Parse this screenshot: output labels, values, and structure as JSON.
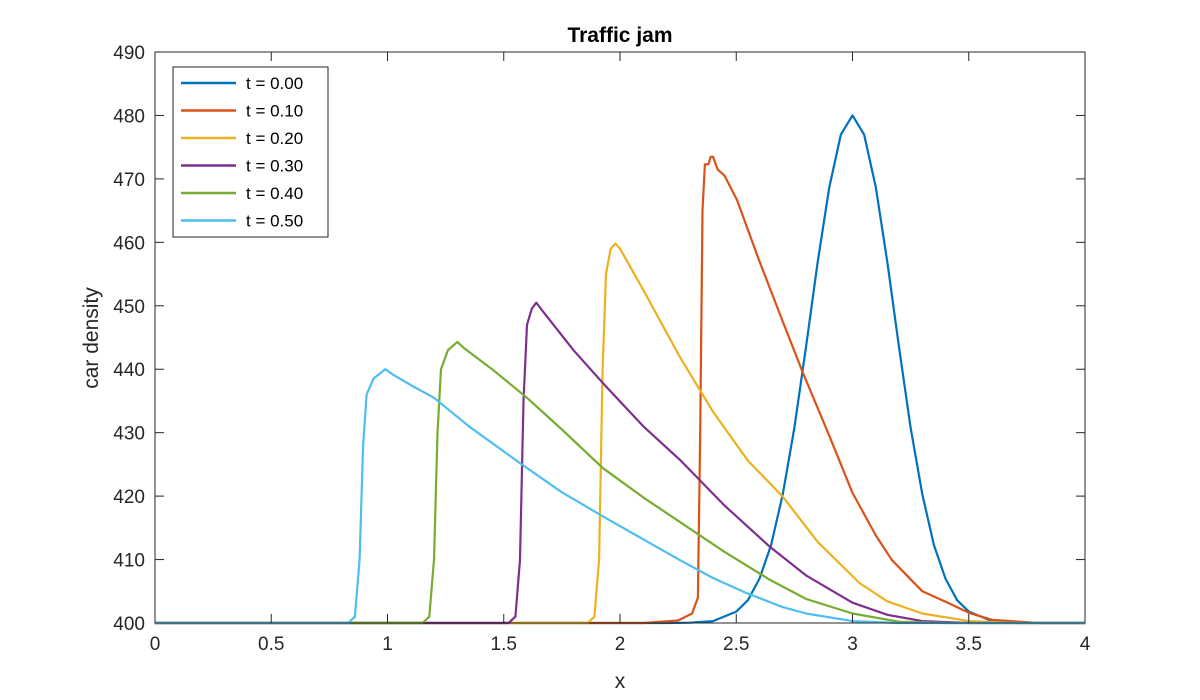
{
  "chart_data": {
    "type": "line",
    "title": "Traffic jam",
    "xlabel": "x",
    "ylabel": "car density",
    "xlim": [
      0,
      4
    ],
    "ylim": [
      400,
      490
    ],
    "xticks": [
      0,
      0.5,
      1,
      1.5,
      2,
      2.5,
      3,
      3.5,
      4
    ],
    "xtick_labels": [
      "0",
      "0.5",
      "1",
      "1.5",
      "2",
      "2.5",
      "3",
      "3.5",
      "4"
    ],
    "yticks": [
      400,
      410,
      420,
      430,
      440,
      450,
      460,
      470,
      480,
      490
    ],
    "ytick_labels": [
      "400",
      "410",
      "420",
      "430",
      "440",
      "450",
      "460",
      "470",
      "480",
      "490"
    ],
    "grid": false,
    "legend_position": "top-left",
    "series": [
      {
        "name": "t = 0.00",
        "color": "#0072BD",
        "points": [
          [
            0,
            400
          ],
          [
            2.2,
            400
          ],
          [
            2.3,
            400.05
          ],
          [
            2.4,
            400.3
          ],
          [
            2.5,
            401.8
          ],
          [
            2.55,
            403.6
          ],
          [
            2.6,
            407.0
          ],
          [
            2.65,
            412.3
          ],
          [
            2.7,
            420.3
          ],
          [
            2.75,
            430.8
          ],
          [
            2.8,
            443.5
          ],
          [
            2.85,
            456.8
          ],
          [
            2.9,
            468.7
          ],
          [
            2.95,
            477.0
          ],
          [
            3.0,
            480
          ],
          [
            3.05,
            477.0
          ],
          [
            3.1,
            468.7
          ],
          [
            3.15,
            456.8
          ],
          [
            3.2,
            443.5
          ],
          [
            3.25,
            430.8
          ],
          [
            3.3,
            420.3
          ],
          [
            3.35,
            412.3
          ],
          [
            3.4,
            407.0
          ],
          [
            3.45,
            403.6
          ],
          [
            3.5,
            401.8
          ],
          [
            3.6,
            400.3
          ],
          [
            3.7,
            400.05
          ],
          [
            3.8,
            400
          ],
          [
            4,
            400
          ]
        ]
      },
      {
        "name": "t = 0.10",
        "color": "#D95319",
        "points": [
          [
            0,
            400
          ],
          [
            2.1,
            400
          ],
          [
            2.25,
            400.4
          ],
          [
            2.31,
            401.5
          ],
          [
            2.335,
            404
          ],
          [
            2.345,
            430
          ],
          [
            2.355,
            465
          ],
          [
            2.365,
            472.3
          ],
          [
            2.38,
            472.3
          ],
          [
            2.39,
            473.5
          ],
          [
            2.4,
            473.5
          ],
          [
            2.42,
            471.5
          ],
          [
            2.45,
            470.5
          ],
          [
            2.503,
            466.7
          ],
          [
            2.6,
            457
          ],
          [
            2.7,
            447.5
          ],
          [
            2.787,
            439.4
          ],
          [
            2.9,
            429.5
          ],
          [
            3.0,
            420.5
          ],
          [
            3.1,
            413.8
          ],
          [
            3.17,
            409.9
          ],
          [
            3.3,
            405
          ],
          [
            3.41,
            403.2
          ],
          [
            3.5,
            401.6
          ],
          [
            3.6,
            400.5
          ],
          [
            3.8,
            400
          ],
          [
            4,
            400
          ]
        ]
      },
      {
        "name": "t = 0.20",
        "color": "#EDB120",
        "points": [
          [
            0,
            400
          ],
          [
            1.86,
            400
          ],
          [
            1.89,
            401
          ],
          [
            1.91,
            410
          ],
          [
            1.925,
            440
          ],
          [
            1.94,
            455
          ],
          [
            1.96,
            459
          ],
          [
            1.98,
            459.8
          ],
          [
            2.0,
            459
          ],
          [
            2.1,
            452.5
          ],
          [
            2.258,
            441.9
          ],
          [
            2.4,
            433.3
          ],
          [
            2.55,
            425.6
          ],
          [
            2.7,
            419.9
          ],
          [
            2.85,
            412.8
          ],
          [
            3.03,
            406.3
          ],
          [
            3.15,
            403.4
          ],
          [
            3.3,
            401.5
          ],
          [
            3.5,
            400.3
          ],
          [
            3.7,
            400
          ],
          [
            4,
            400
          ]
        ]
      },
      {
        "name": "t = 0.30",
        "color": "#7E2F8E",
        "points": [
          [
            0,
            400
          ],
          [
            1.52,
            400
          ],
          [
            1.55,
            401
          ],
          [
            1.57,
            410
          ],
          [
            1.585,
            435
          ],
          [
            1.6,
            447
          ],
          [
            1.62,
            449.5
          ],
          [
            1.64,
            450.5
          ],
          [
            1.66,
            449.5
          ],
          [
            1.8,
            443
          ],
          [
            1.927,
            437.8
          ],
          [
            2.1,
            431
          ],
          [
            2.258,
            425.7
          ],
          [
            2.45,
            418.5
          ],
          [
            2.645,
            412
          ],
          [
            2.8,
            407.5
          ],
          [
            3.0,
            403.2
          ],
          [
            3.15,
            401.3
          ],
          [
            3.3,
            400.3
          ],
          [
            3.5,
            400
          ],
          [
            4,
            400
          ]
        ]
      },
      {
        "name": "t = 0.40",
        "color": "#77AC30",
        "points": [
          [
            0,
            400
          ],
          [
            1.15,
            400
          ],
          [
            1.18,
            401
          ],
          [
            1.2,
            410
          ],
          [
            1.215,
            430
          ],
          [
            1.23,
            440
          ],
          [
            1.26,
            443
          ],
          [
            1.3,
            444.3
          ],
          [
            1.33,
            443.3
          ],
          [
            1.45,
            440
          ],
          [
            1.6,
            435.5
          ],
          [
            1.75,
            430.5
          ],
          [
            1.927,
            424.4
          ],
          [
            2.1,
            419.8
          ],
          [
            2.258,
            415.9
          ],
          [
            2.45,
            411.2
          ],
          [
            2.645,
            406.8
          ],
          [
            2.8,
            403.8
          ],
          [
            3.0,
            401.5
          ],
          [
            3.2,
            400.2
          ],
          [
            3.4,
            400
          ],
          [
            4,
            400
          ]
        ]
      },
      {
        "name": "t = 0.50",
        "color": "#4DBEEE",
        "points": [
          [
            0,
            400
          ],
          [
            0.83,
            400
          ],
          [
            0.86,
            401
          ],
          [
            0.88,
            410
          ],
          [
            0.895,
            428
          ],
          [
            0.91,
            436
          ],
          [
            0.94,
            438.5
          ],
          [
            0.99,
            440
          ],
          [
            1.03,
            439
          ],
          [
            1.1,
            437.5
          ],
          [
            1.2,
            435.5
          ],
          [
            1.35,
            431
          ],
          [
            1.57,
            425.2
          ],
          [
            1.75,
            420.6
          ],
          [
            1.95,
            416.3
          ],
          [
            2.1,
            413.2
          ],
          [
            2.258,
            409.9
          ],
          [
            2.4,
            407.1
          ],
          [
            2.546,
            404.7
          ],
          [
            2.7,
            402.5
          ],
          [
            2.8,
            401.5
          ],
          [
            3.0,
            400.3
          ],
          [
            3.2,
            400
          ],
          [
            4,
            400
          ]
        ]
      }
    ]
  }
}
